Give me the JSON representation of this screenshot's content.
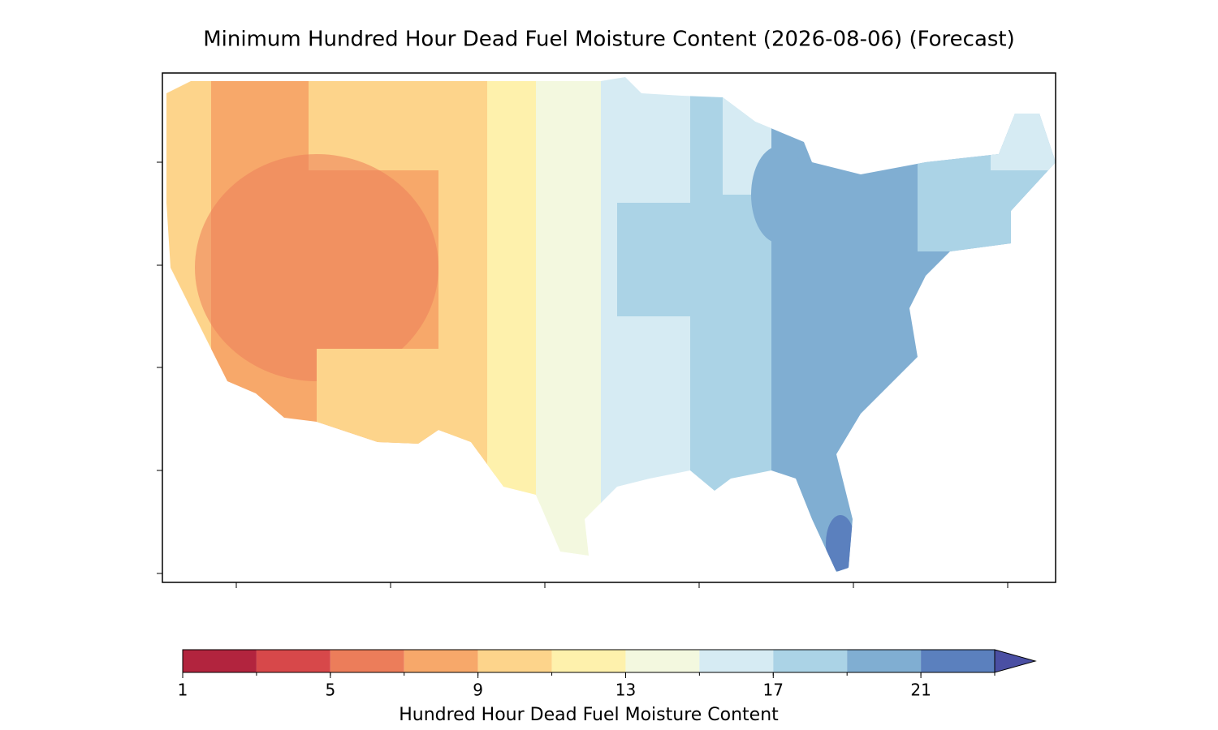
{
  "title": "Minimum Hundred Hour Dead Fuel Moisture Content (2026-08-06) (Forecast)",
  "colorbar": {
    "label": "Hundred Hour Dead Fuel Moisture Content",
    "levels": [
      1,
      3,
      5,
      7,
      9,
      11,
      13,
      15,
      17,
      19,
      21,
      23
    ],
    "colors": [
      "#b2243e",
      "#d7484a",
      "#ec7d5a",
      "#f7a86a",
      "#fdd48b",
      "#fef1ac",
      "#f3f8df",
      "#d6ebf3",
      "#abd3e6",
      "#80aed2",
      "#5b80be"
    ],
    "extend_color": "#4a4fa3",
    "ticks": [
      1,
      5,
      9,
      13,
      17,
      21
    ]
  }
}
